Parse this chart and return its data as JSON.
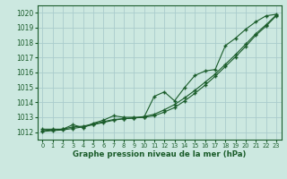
{
  "background_color": "#cce8e0",
  "grid_color": "#aacccc",
  "line_color": "#1a5c2a",
  "xlabel": "Graphe pression niveau de la mer (hPa)",
  "ylim": [
    1011.5,
    1020.5
  ],
  "xlim": [
    -0.5,
    23.5
  ],
  "yticks": [
    1012,
    1013,
    1014,
    1015,
    1016,
    1017,
    1018,
    1019,
    1020
  ],
  "xticks": [
    0,
    1,
    2,
    3,
    4,
    5,
    6,
    7,
    8,
    9,
    10,
    11,
    12,
    13,
    14,
    15,
    16,
    17,
    18,
    19,
    20,
    21,
    22,
    23
  ],
  "series_measured": [
    1012.2,
    1012.2,
    1012.2,
    1012.5,
    1012.3,
    1012.6,
    1012.8,
    1013.1,
    1013.0,
    1013.0,
    1013.0,
    1014.4,
    1014.7,
    1014.1,
    1015.0,
    1015.8,
    1016.1,
    1016.2,
    1017.8,
    1018.3,
    1018.9,
    1019.4,
    1019.8,
    1019.9
  ],
  "series_smooth1": [
    1012.1,
    1012.15,
    1012.2,
    1012.35,
    1012.4,
    1012.55,
    1012.7,
    1012.85,
    1012.9,
    1012.95,
    1013.05,
    1013.2,
    1013.5,
    1013.85,
    1014.3,
    1014.8,
    1015.35,
    1015.9,
    1016.55,
    1017.2,
    1017.9,
    1018.6,
    1019.2,
    1019.85
  ],
  "series_smooth2": [
    1012.05,
    1012.1,
    1012.15,
    1012.25,
    1012.35,
    1012.5,
    1012.65,
    1012.8,
    1012.9,
    1012.95,
    1013.0,
    1013.1,
    1013.35,
    1013.65,
    1014.1,
    1014.6,
    1015.15,
    1015.75,
    1016.4,
    1017.05,
    1017.75,
    1018.5,
    1019.1,
    1019.8
  ]
}
